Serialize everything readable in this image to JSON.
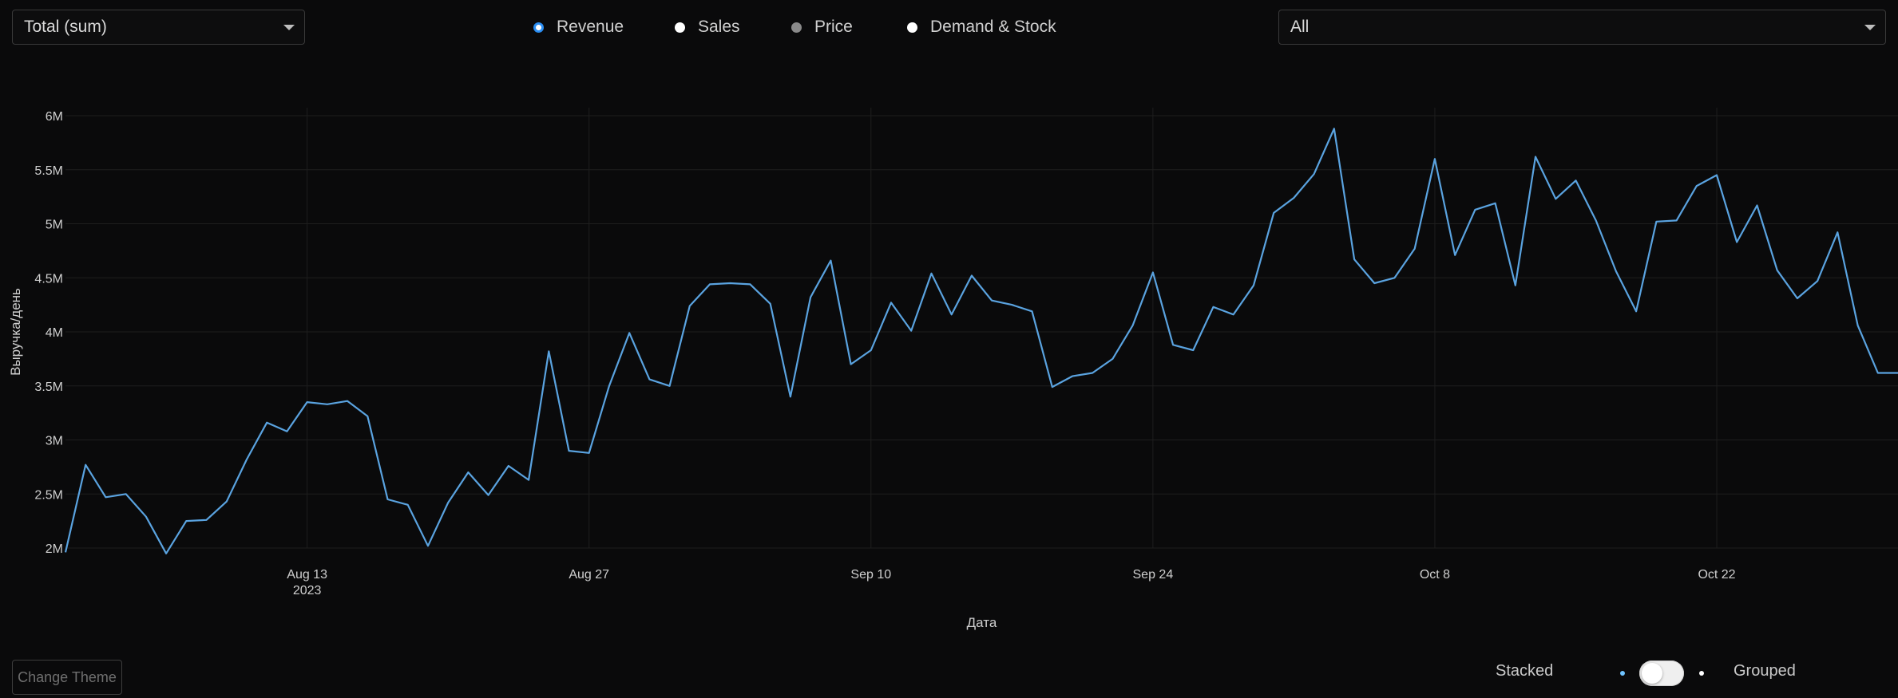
{
  "controls": {
    "aggregation_select": {
      "value": "Total (sum)"
    },
    "metric_radios": [
      {
        "label": "Revenue",
        "state": "checked"
      },
      {
        "label": "Sales",
        "state": "unchecked"
      },
      {
        "label": "Price",
        "state": "disabled"
      },
      {
        "label": "Demand & Stock",
        "state": "unchecked"
      }
    ],
    "filter_select": {
      "value": "All"
    }
  },
  "colors": {
    "background": "#0a0a0b",
    "line": "#5aa3e0",
    "radio_accent": "#2a8df2",
    "grid": "#1e1e1e"
  },
  "chart_data": {
    "type": "line",
    "xlabel": "Дата",
    "ylabel": "Выручка/день",
    "y_ticks": [
      "2M",
      "2.5M",
      "3M",
      "3.5M",
      "4M",
      "4.5M",
      "5M",
      "5.5M",
      "6M"
    ],
    "y_tick_values": [
      2000000,
      2500000,
      3000000,
      3500000,
      4000000,
      4500000,
      5000000,
      5500000,
      6000000
    ],
    "ylim": [
      2000000,
      6000000
    ],
    "x_ticks": [
      {
        "date": "2023-08-13",
        "label": "Aug 13",
        "sublabel": "2023"
      },
      {
        "date": "2023-08-27",
        "label": "Aug 27",
        "sublabel": ""
      },
      {
        "date": "2023-09-10",
        "label": "Sep 10",
        "sublabel": ""
      },
      {
        "date": "2023-09-24",
        "label": "Sep 24",
        "sublabel": ""
      },
      {
        "date": "2023-10-08",
        "label": "Oct 8",
        "sublabel": ""
      },
      {
        "date": "2023-10-22",
        "label": "Oct 22",
        "sublabel": ""
      }
    ],
    "xlim": [
      "2023-08-01",
      "2023-10-31"
    ],
    "grid": true,
    "series": [
      {
        "x": [
          "2023-08-01",
          "2023-08-02",
          "2023-08-03",
          "2023-08-04",
          "2023-08-05",
          "2023-08-06",
          "2023-08-07",
          "2023-08-08",
          "2023-08-09",
          "2023-08-10",
          "2023-08-11",
          "2023-08-12",
          "2023-08-13",
          "2023-08-14",
          "2023-08-15",
          "2023-08-16",
          "2023-08-17",
          "2023-08-18",
          "2023-08-19",
          "2023-08-20",
          "2023-08-21",
          "2023-08-22",
          "2023-08-23",
          "2023-08-24",
          "2023-08-25",
          "2023-08-26",
          "2023-08-27",
          "2023-08-28",
          "2023-08-29",
          "2023-08-30",
          "2023-08-31",
          "2023-09-01",
          "2023-09-02",
          "2023-09-03",
          "2023-09-04",
          "2023-09-05",
          "2023-09-06",
          "2023-09-07",
          "2023-09-08",
          "2023-09-09",
          "2023-09-10",
          "2023-09-11",
          "2023-09-12",
          "2023-09-13",
          "2023-09-14",
          "2023-09-15",
          "2023-09-16",
          "2023-09-17",
          "2023-09-18",
          "2023-09-19",
          "2023-09-20",
          "2023-09-21",
          "2023-09-22",
          "2023-09-23",
          "2023-09-24",
          "2023-09-25",
          "2023-09-26",
          "2023-09-27",
          "2023-09-28",
          "2023-09-29",
          "2023-09-30",
          "2023-10-01",
          "2023-10-02",
          "2023-10-03",
          "2023-10-04",
          "2023-10-05",
          "2023-10-06",
          "2023-10-07",
          "2023-10-08",
          "2023-10-09",
          "2023-10-10",
          "2023-10-11",
          "2023-10-12",
          "2023-10-13",
          "2023-10-14",
          "2023-10-15",
          "2023-10-16",
          "2023-10-17",
          "2023-10-18",
          "2023-10-19",
          "2023-10-20",
          "2023-10-21",
          "2023-10-22",
          "2023-10-23",
          "2023-10-24",
          "2023-10-25",
          "2023-10-26",
          "2023-10-27",
          "2023-10-28",
          "2023-10-29",
          "2023-10-30",
          "2023-10-31"
        ],
        "y": [
          1960000,
          2770000,
          2470000,
          2500000,
          2290000,
          1950000,
          2250000,
          2260000,
          2430000,
          2820000,
          3160000,
          3080000,
          3350000,
          3330000,
          3360000,
          3220000,
          2450000,
          2400000,
          2020000,
          2420000,
          2700000,
          2490000,
          2760000,
          2630000,
          3820000,
          2900000,
          2880000,
          3500000,
          3990000,
          3560000,
          3500000,
          4240000,
          4440000,
          4450000,
          4440000,
          4260000,
          3400000,
          4320000,
          4660000,
          3700000,
          3830000,
          4270000,
          4010000,
          4540000,
          4160000,
          4520000,
          4290000,
          4250000,
          4190000,
          3490000,
          3590000,
          3620000,
          3750000,
          4060000,
          4550000,
          3880000,
          3830000,
          4230000,
          4160000,
          4430000,
          5100000,
          5240000,
          5460000,
          5880000,
          4670000,
          4450000,
          4500000,
          4770000,
          5600000,
          4710000,
          5130000,
          5190000,
          4430000,
          5620000,
          5230000,
          5400000,
          5030000,
          4560000,
          4190000,
          5020000,
          5030000,
          5350000,
          5450000,
          4830000,
          5170000,
          4570000,
          4310000,
          4470000,
          4920000,
          4060000,
          3620000,
          3620000
        ]
      }
    ]
  },
  "footer": {
    "change_theme_label": "Change Theme",
    "stacked_label": "Stacked",
    "grouped_label": "Grouped",
    "mode_toggle_on": false
  }
}
